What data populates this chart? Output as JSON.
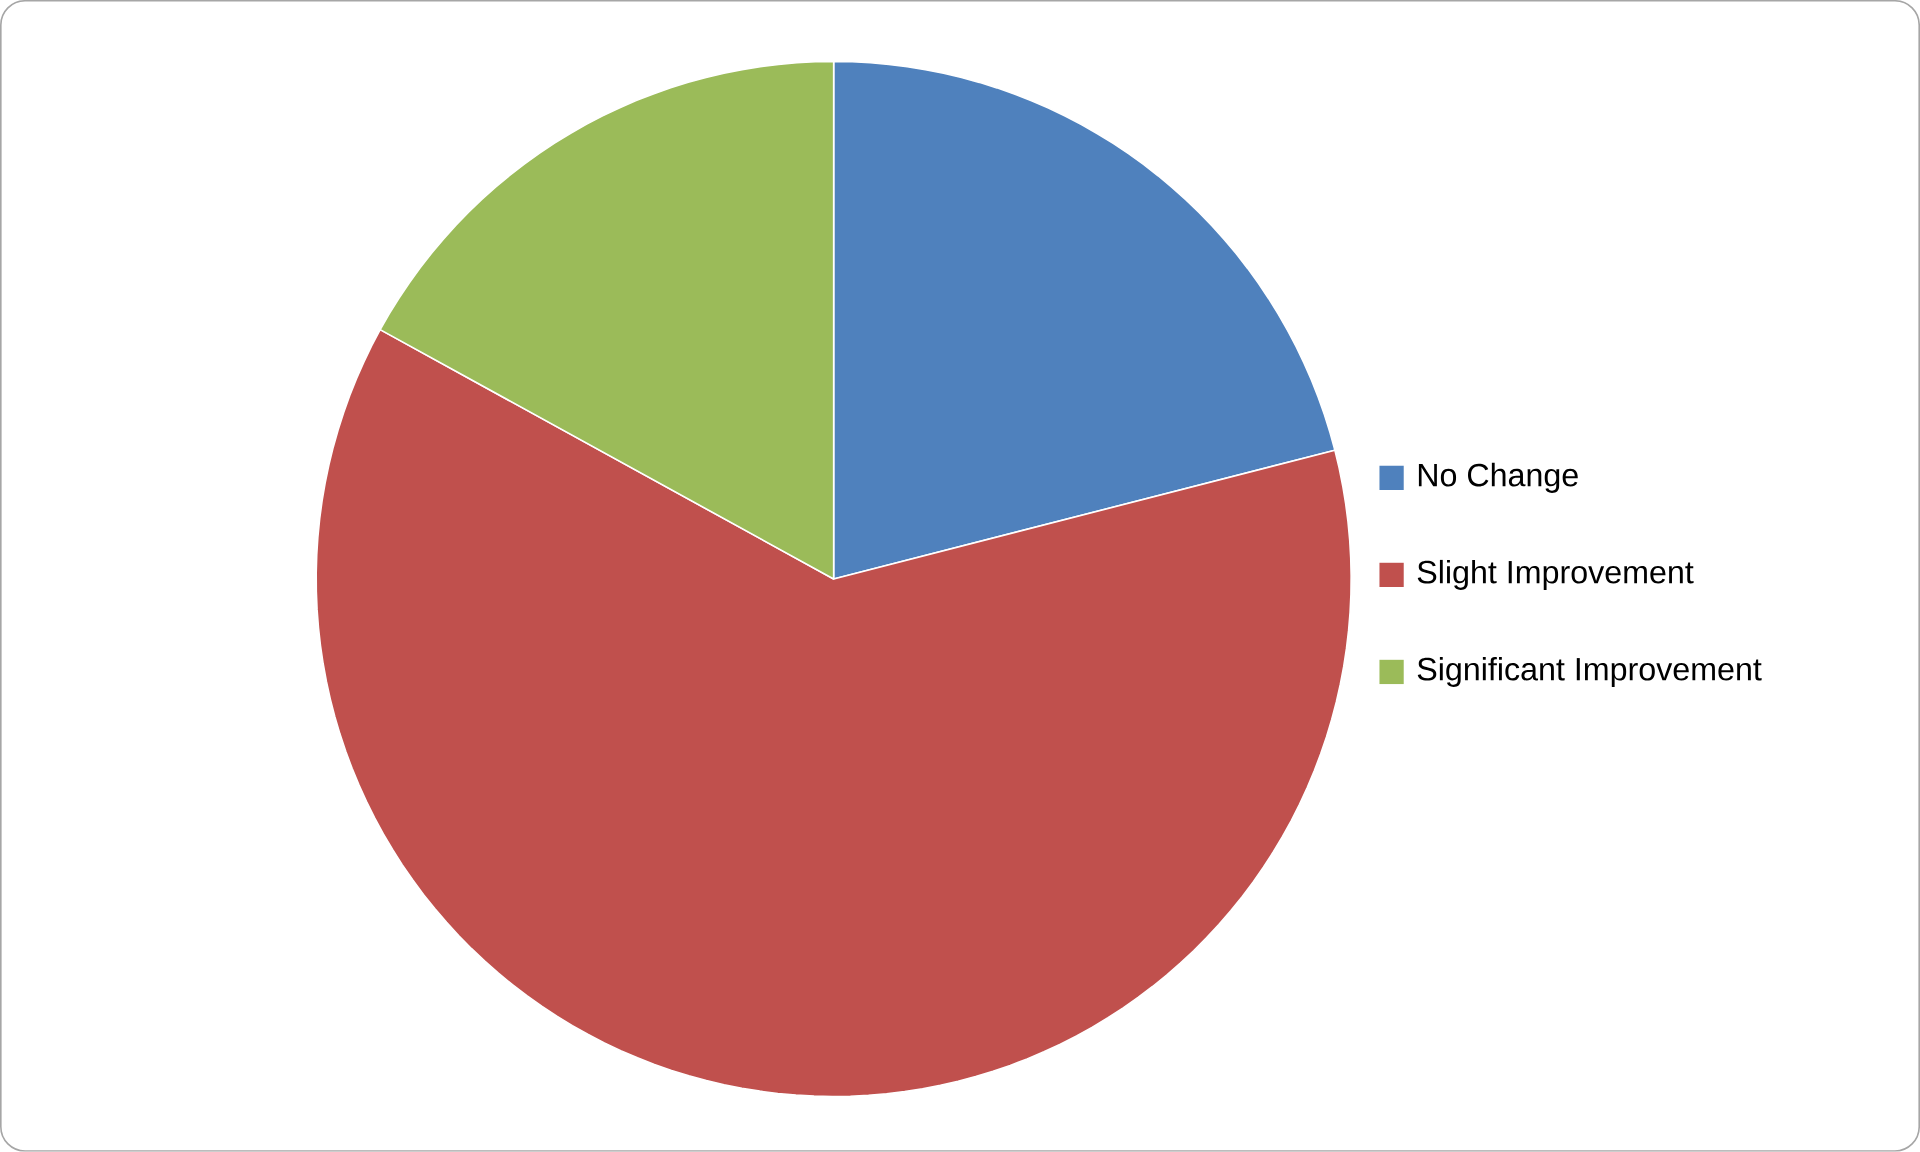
{
  "chart_data": {
    "type": "pie",
    "categories": [
      "No Change",
      "Slight Improvement",
      "Significant Improvement"
    ],
    "values": [
      21,
      62,
      17
    ],
    "colors": [
      "#4f81bd",
      "#c0504d",
      "#9bbb59"
    ],
    "legend": "right"
  }
}
